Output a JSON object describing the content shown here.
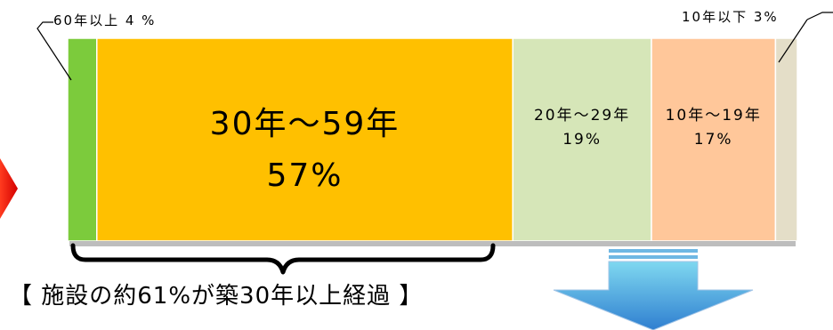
{
  "chart_data": {
    "type": "bar",
    "orientation": "horizontal-stacked-100",
    "categories": [
      "60年以上",
      "30年～59年",
      "20年～29年",
      "10年～19年",
      "10年以下"
    ],
    "values": [
      4,
      57,
      19,
      17,
      3
    ],
    "unit": "%",
    "labels": [
      {
        "name": "60年以上",
        "value": "4 %"
      },
      {
        "name": "30年～59年",
        "value": "57%"
      },
      {
        "name": "20年～29年",
        "value": "19%"
      },
      {
        "name": "10年～19年",
        "value": "17%"
      },
      {
        "name": "10年以下",
        "value": "3%"
      }
    ],
    "colors": [
      "#7CCB3C",
      "#FFC000",
      "#D6E6B8",
      "#FFC79A",
      "#E4DEC8"
    ]
  },
  "callouts": {
    "left": "60年以上 4 %",
    "right": "10年以下 3%"
  },
  "caption": "【 施設の約61%が築30年以上経過 】"
}
